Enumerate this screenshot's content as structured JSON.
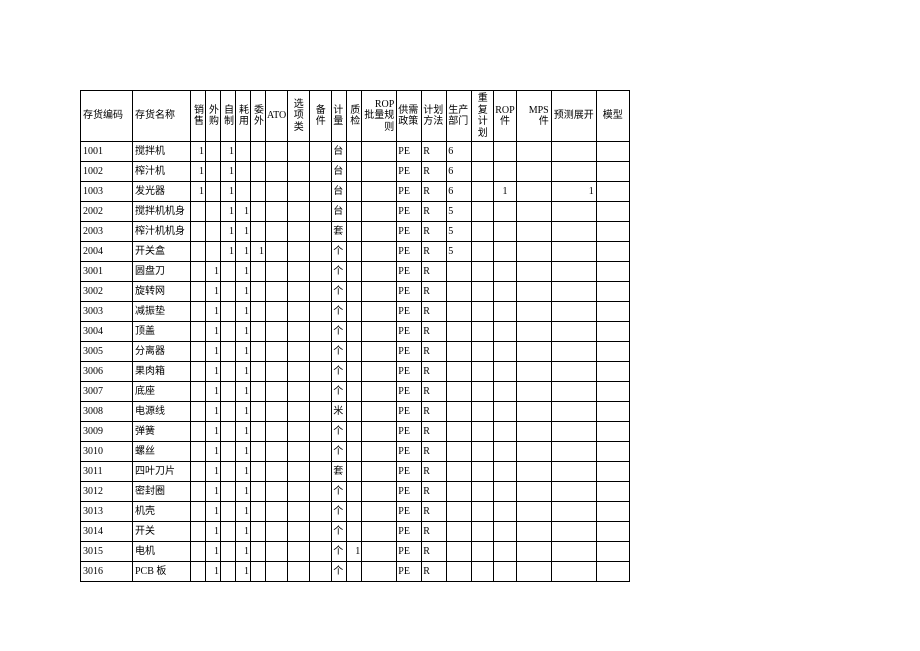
{
  "table": {
    "background_color": "#ffffff",
    "border_color": "#000000",
    "font_family": "SimSun",
    "header_fontsize": 10,
    "body_fontsize": 10,
    "columns": [
      {
        "key": "code",
        "label": "存货编码",
        "cls": "col-code"
      },
      {
        "key": "name",
        "label": "存货名称",
        "cls": "col-name"
      },
      {
        "key": "sale",
        "label": "销售",
        "cls": "col-narrow"
      },
      {
        "key": "purchase",
        "label": "外购",
        "cls": "col-narrow"
      },
      {
        "key": "make",
        "label": "自制",
        "cls": "col-narrow"
      },
      {
        "key": "consume",
        "label": "耗用",
        "cls": "col-narrow"
      },
      {
        "key": "outsrc",
        "label": "委外",
        "cls": "col-narrow"
      },
      {
        "key": "ato",
        "label": "ATO",
        "cls": "col-ato"
      },
      {
        "key": "opt",
        "label": "选项类",
        "cls": "col-mid"
      },
      {
        "key": "spare",
        "label": "备件",
        "cls": "col-mid"
      },
      {
        "key": "unit",
        "label": "计量",
        "cls": "col-unit"
      },
      {
        "key": "qc",
        "label": "质检",
        "cls": "col-narrow"
      },
      {
        "key": "rop_rule",
        "label": "ROP 批量规则",
        "cls": "col-mps"
      },
      {
        "key": "policy",
        "label": "供需政策",
        "cls": "col-policy"
      },
      {
        "key": "method",
        "label": "计划方法",
        "cls": "col-method"
      },
      {
        "key": "dept",
        "label": "生产部门",
        "cls": "col-dept"
      },
      {
        "key": "replan",
        "label": "重复计划",
        "cls": "col-mid"
      },
      {
        "key": "rop_part",
        "label": "ROP件",
        "cls": "col-mid"
      },
      {
        "key": "mps",
        "label": "MPS 件",
        "cls": "col-mps"
      },
      {
        "key": "forecast",
        "label": "预测展开",
        "cls": "col-fc"
      },
      {
        "key": "model",
        "label": "模型",
        "cls": "col-model"
      }
    ],
    "rows": [
      {
        "code": "1001",
        "name": "搅拌机",
        "sale": "1",
        "purchase": "",
        "make": "1",
        "consume": "",
        "outsrc": "",
        "ato": "",
        "opt": "",
        "spare": "",
        "unit": "台",
        "qc": "",
        "rop_rule": "",
        "policy": "PE",
        "method": "R",
        "dept": "6",
        "replan": "",
        "rop_part": "",
        "mps": "",
        "forecast": "",
        "model": ""
      },
      {
        "code": "1002",
        "name": "榨汁机",
        "sale": "1",
        "purchase": "",
        "make": "1",
        "consume": "",
        "outsrc": "",
        "ato": "",
        "opt": "",
        "spare": "",
        "unit": "台",
        "qc": "",
        "rop_rule": "",
        "policy": "PE",
        "method": "R",
        "dept": "6",
        "replan": "",
        "rop_part": "",
        "mps": "",
        "forecast": "",
        "model": ""
      },
      {
        "code": "1003",
        "name": "发光器",
        "sale": "1",
        "purchase": "",
        "make": "1",
        "consume": "",
        "outsrc": "",
        "ato": "",
        "opt": "",
        "spare": "",
        "unit": "台",
        "qc": "",
        "rop_rule": "",
        "policy": "PE",
        "method": "R",
        "dept": "6",
        "replan": "",
        "rop_part": "1",
        "mps": "",
        "forecast": "1",
        "model": ""
      },
      {
        "code": "2002",
        "name": "搅拌机机身",
        "sale": "",
        "purchase": "",
        "make": "1",
        "consume": "1",
        "outsrc": "",
        "ato": "",
        "opt": "",
        "spare": "",
        "unit": "台",
        "qc": "",
        "rop_rule": "",
        "policy": "PE",
        "method": "R",
        "dept": "5",
        "replan": "",
        "rop_part": "",
        "mps": "",
        "forecast": "",
        "model": ""
      },
      {
        "code": "2003",
        "name": "榨汁机机身",
        "sale": "",
        "purchase": "",
        "make": "1",
        "consume": "1",
        "outsrc": "",
        "ato": "",
        "opt": "",
        "spare": "",
        "unit": "套",
        "qc": "",
        "rop_rule": "",
        "policy": "PE",
        "method": "R",
        "dept": "5",
        "replan": "",
        "rop_part": "",
        "mps": "",
        "forecast": "",
        "model": ""
      },
      {
        "code": "2004",
        "name": "开关盒",
        "sale": "",
        "purchase": "",
        "make": "1",
        "consume": "1",
        "outsrc": "1",
        "ato": "",
        "opt": "",
        "spare": "",
        "unit": "个",
        "qc": "",
        "rop_rule": "",
        "policy": "PE",
        "method": "R",
        "dept": "5",
        "replan": "",
        "rop_part": "",
        "mps": "",
        "forecast": "",
        "model": ""
      },
      {
        "code": "3001",
        "name": "圆盘刀",
        "sale": "",
        "purchase": "1",
        "make": "",
        "consume": "1",
        "outsrc": "",
        "ato": "",
        "opt": "",
        "spare": "",
        "unit": "个",
        "qc": "",
        "rop_rule": "",
        "policy": "PE",
        "method": "R",
        "dept": "",
        "replan": "",
        "rop_part": "",
        "mps": "",
        "forecast": "",
        "model": ""
      },
      {
        "code": "3002",
        "name": "旋转网",
        "sale": "",
        "purchase": "1",
        "make": "",
        "consume": "1",
        "outsrc": "",
        "ato": "",
        "opt": "",
        "spare": "",
        "unit": "个",
        "qc": "",
        "rop_rule": "",
        "policy": "PE",
        "method": "R",
        "dept": "",
        "replan": "",
        "rop_part": "",
        "mps": "",
        "forecast": "",
        "model": ""
      },
      {
        "code": "3003",
        "name": "减振垫",
        "sale": "",
        "purchase": "1",
        "make": "",
        "consume": "1",
        "outsrc": "",
        "ato": "",
        "opt": "",
        "spare": "",
        "unit": "个",
        "qc": "",
        "rop_rule": "",
        "policy": "PE",
        "method": "R",
        "dept": "",
        "replan": "",
        "rop_part": "",
        "mps": "",
        "forecast": "",
        "model": ""
      },
      {
        "code": "3004",
        "name": "顶盖",
        "sale": "",
        "purchase": "1",
        "make": "",
        "consume": "1",
        "outsrc": "",
        "ato": "",
        "opt": "",
        "spare": "",
        "unit": "个",
        "qc": "",
        "rop_rule": "",
        "policy": "PE",
        "method": "R",
        "dept": "",
        "replan": "",
        "rop_part": "",
        "mps": "",
        "forecast": "",
        "model": ""
      },
      {
        "code": "3005",
        "name": "分离器",
        "sale": "",
        "purchase": "1",
        "make": "",
        "consume": "1",
        "outsrc": "",
        "ato": "",
        "opt": "",
        "spare": "",
        "unit": "个",
        "qc": "",
        "rop_rule": "",
        "policy": "PE",
        "method": "R",
        "dept": "",
        "replan": "",
        "rop_part": "",
        "mps": "",
        "forecast": "",
        "model": ""
      },
      {
        "code": "3006",
        "name": "果肉箱",
        "sale": "",
        "purchase": "1",
        "make": "",
        "consume": "1",
        "outsrc": "",
        "ato": "",
        "opt": "",
        "spare": "",
        "unit": "个",
        "qc": "",
        "rop_rule": "",
        "policy": "PE",
        "method": "R",
        "dept": "",
        "replan": "",
        "rop_part": "",
        "mps": "",
        "forecast": "",
        "model": ""
      },
      {
        "code": "3007",
        "name": "底座",
        "sale": "",
        "purchase": "1",
        "make": "",
        "consume": "1",
        "outsrc": "",
        "ato": "",
        "opt": "",
        "spare": "",
        "unit": "个",
        "qc": "",
        "rop_rule": "",
        "policy": "PE",
        "method": "R",
        "dept": "",
        "replan": "",
        "rop_part": "",
        "mps": "",
        "forecast": "",
        "model": ""
      },
      {
        "code": "3008",
        "name": "电源线",
        "sale": "",
        "purchase": "1",
        "make": "",
        "consume": "1",
        "outsrc": "",
        "ato": "",
        "opt": "",
        "spare": "",
        "unit": "米",
        "qc": "",
        "rop_rule": "",
        "policy": "PE",
        "method": "R",
        "dept": "",
        "replan": "",
        "rop_part": "",
        "mps": "",
        "forecast": "",
        "model": ""
      },
      {
        "code": "3009",
        "name": "弹簧",
        "sale": "",
        "purchase": "1",
        "make": "",
        "consume": "1",
        "outsrc": "",
        "ato": "",
        "opt": "",
        "spare": "",
        "unit": "个",
        "qc": "",
        "rop_rule": "",
        "policy": "PE",
        "method": "R",
        "dept": "",
        "replan": "",
        "rop_part": "",
        "mps": "",
        "forecast": "",
        "model": ""
      },
      {
        "code": "3010",
        "name": "螺丝",
        "sale": "",
        "purchase": "1",
        "make": "",
        "consume": "1",
        "outsrc": "",
        "ato": "",
        "opt": "",
        "spare": "",
        "unit": "个",
        "qc": "",
        "rop_rule": "",
        "policy": "PE",
        "method": "R",
        "dept": "",
        "replan": "",
        "rop_part": "",
        "mps": "",
        "forecast": "",
        "model": ""
      },
      {
        "code": "3011",
        "name": "四叶刀片",
        "sale": "",
        "purchase": "1",
        "make": "",
        "consume": "1",
        "outsrc": "",
        "ato": "",
        "opt": "",
        "spare": "",
        "unit": "套",
        "qc": "",
        "rop_rule": "",
        "policy": "PE",
        "method": "R",
        "dept": "",
        "replan": "",
        "rop_part": "",
        "mps": "",
        "forecast": "",
        "model": ""
      },
      {
        "code": "3012",
        "name": "密封圈",
        "sale": "",
        "purchase": "1",
        "make": "",
        "consume": "1",
        "outsrc": "",
        "ato": "",
        "opt": "",
        "spare": "",
        "unit": "个",
        "qc": "",
        "rop_rule": "",
        "policy": "PE",
        "method": "R",
        "dept": "",
        "replan": "",
        "rop_part": "",
        "mps": "",
        "forecast": "",
        "model": ""
      },
      {
        "code": "3013",
        "name": "机壳",
        "sale": "",
        "purchase": "1",
        "make": "",
        "consume": "1",
        "outsrc": "",
        "ato": "",
        "opt": "",
        "spare": "",
        "unit": "个",
        "qc": "",
        "rop_rule": "",
        "policy": "PE",
        "method": "R",
        "dept": "",
        "replan": "",
        "rop_part": "",
        "mps": "",
        "forecast": "",
        "model": ""
      },
      {
        "code": "3014",
        "name": "开关",
        "sale": "",
        "purchase": "1",
        "make": "",
        "consume": "1",
        "outsrc": "",
        "ato": "",
        "opt": "",
        "spare": "",
        "unit": "个",
        "qc": "",
        "rop_rule": "",
        "policy": "PE",
        "method": "R",
        "dept": "",
        "replan": "",
        "rop_part": "",
        "mps": "",
        "forecast": "",
        "model": ""
      },
      {
        "code": "3015",
        "name": "电机",
        "sale": "",
        "purchase": "1",
        "make": "",
        "consume": "1",
        "outsrc": "",
        "ato": "",
        "opt": "",
        "spare": "",
        "unit": "个",
        "qc": "1",
        "rop_rule": "",
        "policy": "PE",
        "method": "R",
        "dept": "",
        "replan": "",
        "rop_part": "",
        "mps": "",
        "forecast": "",
        "model": ""
      },
      {
        "code": "3016",
        "name": "PCB 板",
        "sale": "",
        "purchase": "1",
        "make": "",
        "consume": "1",
        "outsrc": "",
        "ato": "",
        "opt": "",
        "spare": "",
        "unit": "个",
        "qc": "",
        "rop_rule": "",
        "policy": "PE",
        "method": "R",
        "dept": "",
        "replan": "",
        "rop_part": "",
        "mps": "",
        "forecast": "",
        "model": ""
      }
    ]
  }
}
